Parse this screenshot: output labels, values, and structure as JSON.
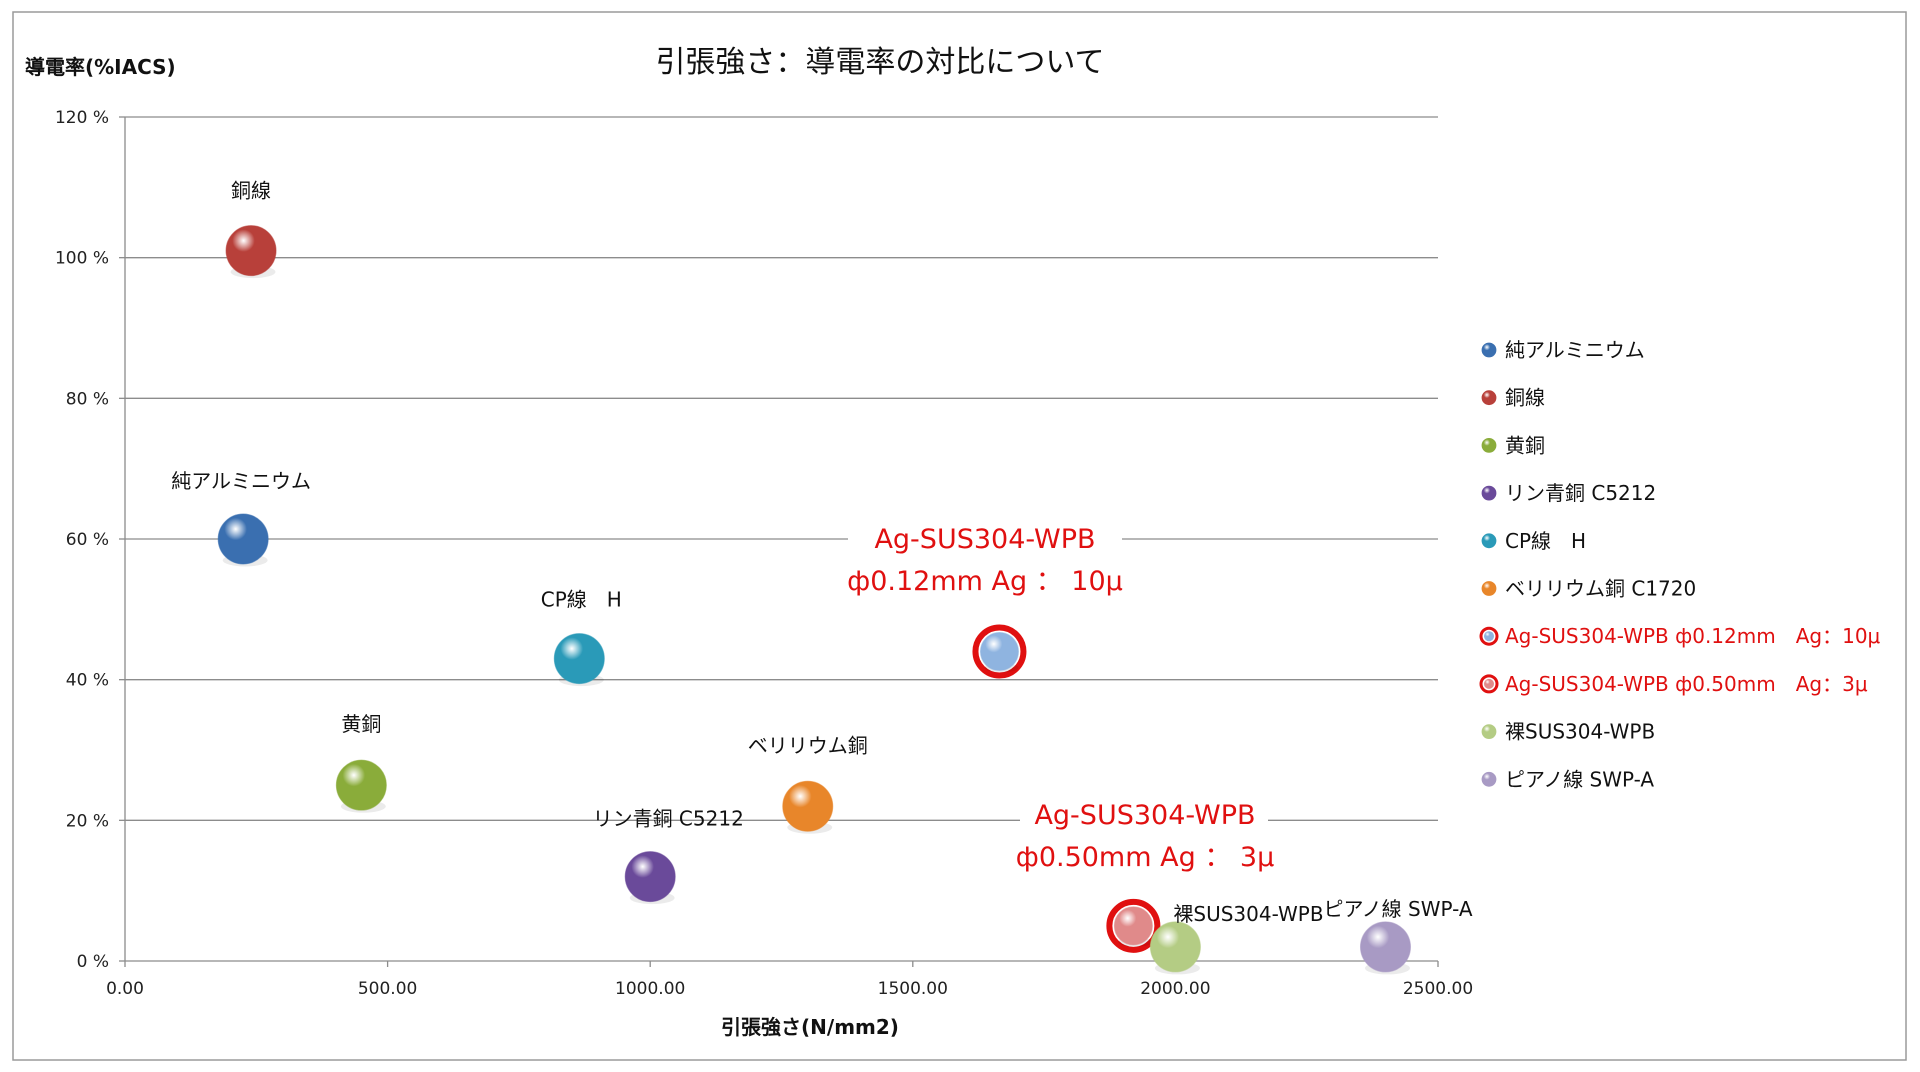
{
  "chart_data": {
    "type": "scatter",
    "title": "引張強さ：導電率の対比について",
    "xlabel": "引張強さ(N/mm2)",
    "ylabel": "導電率(%IACS)",
    "xlim": [
      0,
      2500
    ],
    "ylim": [
      0,
      120
    ],
    "x_ticks": [
      "0.00",
      "500.00",
      "1000.00",
      "1500.00",
      "2000.00",
      "2500.00"
    ],
    "y_ticks": [
      "0 %",
      "20 %",
      "40 %",
      "60 %",
      "80 %",
      "100 %",
      "120 %"
    ],
    "grid": "horizontal",
    "legend": "right",
    "series": [
      {
        "name": "純アルミニウム",
        "label": "純アルミニウム",
        "x": 225,
        "y": 60,
        "color": "#3a6fb0",
        "highlight": false
      },
      {
        "name": "銅線",
        "label": "銅線",
        "x": 240,
        "y": 101,
        "color": "#b8403a",
        "highlight": false
      },
      {
        "name": "黄銅",
        "label": "黄銅",
        "x": 450,
        "y": 25,
        "color": "#8aac3a",
        "highlight": false
      },
      {
        "name": "リン青銅 C5212",
        "label": "リン青銅 C5212",
        "x": 1000,
        "y": 12,
        "color": "#6a4a9a",
        "highlight": false
      },
      {
        "name": "CP線　H",
        "label": "CP線　H",
        "x": 865,
        "y": 43,
        "color": "#2a9ab8",
        "highlight": false
      },
      {
        "name": "ベリリウム銅 C1720",
        "label": "ベリリウム銅",
        "x": 1300,
        "y": 22,
        "color": "#e8862a",
        "highlight": false
      },
      {
        "name": "Ag-SUS304-WPB ф0.12mm　Ag：10μ",
        "label": "",
        "x": 1665,
        "y": 44,
        "color": "#8fb4e0",
        "highlight": true
      },
      {
        "name": "Ag-SUS304-WPB ф0.50mm　Ag：3μ",
        "label": "",
        "x": 1920,
        "y": 5,
        "color": "#e08a8a",
        "highlight": true
      },
      {
        "name": "裸SUS304-WPB",
        "label": "裸SUS304-WPB",
        "x": 2000,
        "y": 2,
        "color": "#b4cc84",
        "highlight": false
      },
      {
        "name": "ピアノ線 SWP-A",
        "label": "ピアノ線 SWP-A",
        "x": 2400,
        "y": 2,
        "color": "#a89ac4",
        "highlight": false
      }
    ],
    "annotations": [
      {
        "lines": [
          "Ag-SUS304-WPB",
          "ф0.12mm  Ag ： 10μ"
        ],
        "color": "#e01010"
      },
      {
        "lines": [
          "Ag-SUS304-WPB",
          "ф0.50mm  Ag ： 3μ"
        ],
        "color": "#e01010"
      }
    ]
  }
}
